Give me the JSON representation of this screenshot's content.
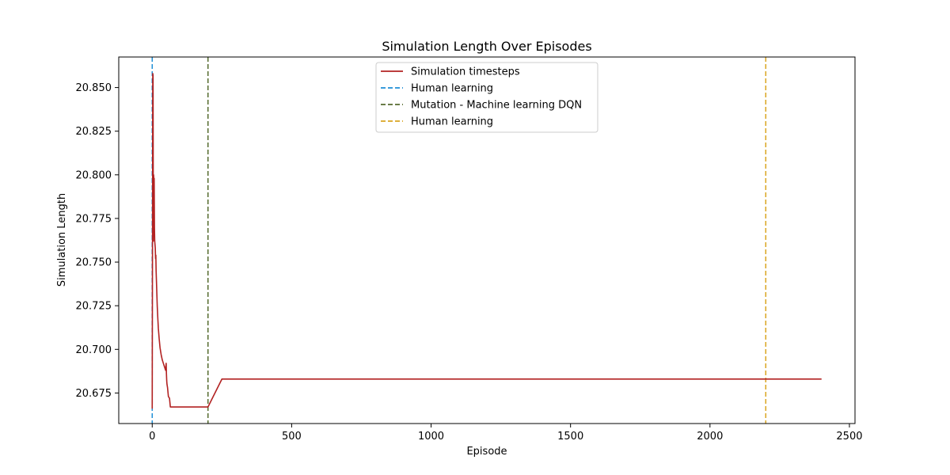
{
  "chart_data": {
    "type": "line",
    "title": "Simulation Length Over Episodes",
    "xlabel": "Episode",
    "ylabel": "Simulation Length",
    "xlim": [
      -120,
      2520
    ],
    "ylim": [
      20.6575,
      20.8675
    ],
    "xticks": [
      0,
      500,
      1000,
      1500,
      2000,
      2500
    ],
    "yticks": [
      20.675,
      20.7,
      20.725,
      20.75,
      20.775,
      20.8,
      20.825,
      20.85
    ],
    "ytick_labels": [
      "20.675",
      "20.700",
      "20.725",
      "20.750",
      "20.775",
      "20.800",
      "20.825",
      "20.850"
    ],
    "grid": false,
    "legend_position": "upper-center",
    "series": [
      {
        "name": "Simulation timesteps",
        "color": "#b22222",
        "style": "solid",
        "x": [
          0,
          2,
          3,
          4,
          5,
          6,
          7,
          8,
          9,
          10,
          11,
          12,
          13,
          14,
          16,
          18,
          20,
          22,
          25,
          28,
          32,
          36,
          40,
          44,
          48,
          50,
          51,
          52,
          53,
          55,
          58,
          62,
          65,
          70,
          100,
          150,
          195,
          200,
          250,
          1000,
          2000,
          2400
        ],
        "y": [
          20.666,
          20.858,
          20.857,
          20.762,
          20.8,
          20.797,
          20.798,
          20.77,
          20.762,
          20.76,
          20.758,
          20.752,
          20.754,
          20.745,
          20.735,
          20.725,
          20.718,
          20.712,
          20.706,
          20.701,
          20.697,
          20.694,
          20.692,
          20.69,
          20.688,
          20.692,
          20.686,
          20.682,
          20.68,
          20.678,
          20.673,
          20.672,
          20.667,
          20.667,
          20.667,
          20.667,
          20.667,
          20.667,
          20.683,
          20.683,
          20.683,
          20.683
        ]
      }
    ],
    "vlines": [
      {
        "name": "Human learning",
        "x": 0,
        "color": "#1f8fd6",
        "style": "dashed"
      },
      {
        "name": "Mutation - Machine learning DQN",
        "x": 200,
        "color": "#556b2f",
        "style": "dashed"
      },
      {
        "name": "Human learning",
        "x": 2200,
        "color": "#daa520",
        "style": "dashed"
      }
    ]
  }
}
